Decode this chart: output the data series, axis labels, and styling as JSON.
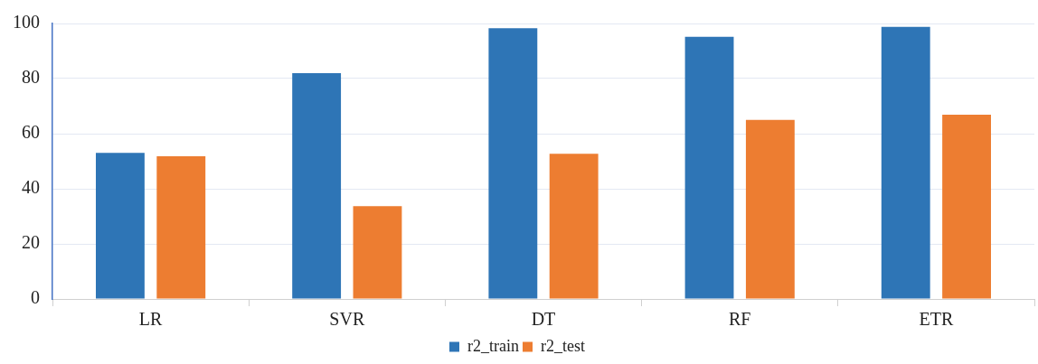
{
  "chart_data": {
    "type": "bar",
    "categories": [
      "LR",
      "SVR",
      "DT",
      "RF",
      "ETR"
    ],
    "series": [
      {
        "name": "r2_train",
        "color": "#2e75b6",
        "values": [
          53,
          82,
          98.3,
          95.2,
          98.8
        ]
      },
      {
        "name": "r2_test",
        "color": "#ed7d31",
        "values": [
          51.8,
          33.7,
          52.7,
          65,
          66.9
        ]
      }
    ],
    "ylim": [
      0,
      100
    ],
    "yticks": [
      0,
      20,
      40,
      60,
      80,
      100
    ],
    "grid": "y",
    "legend": "bottom"
  }
}
